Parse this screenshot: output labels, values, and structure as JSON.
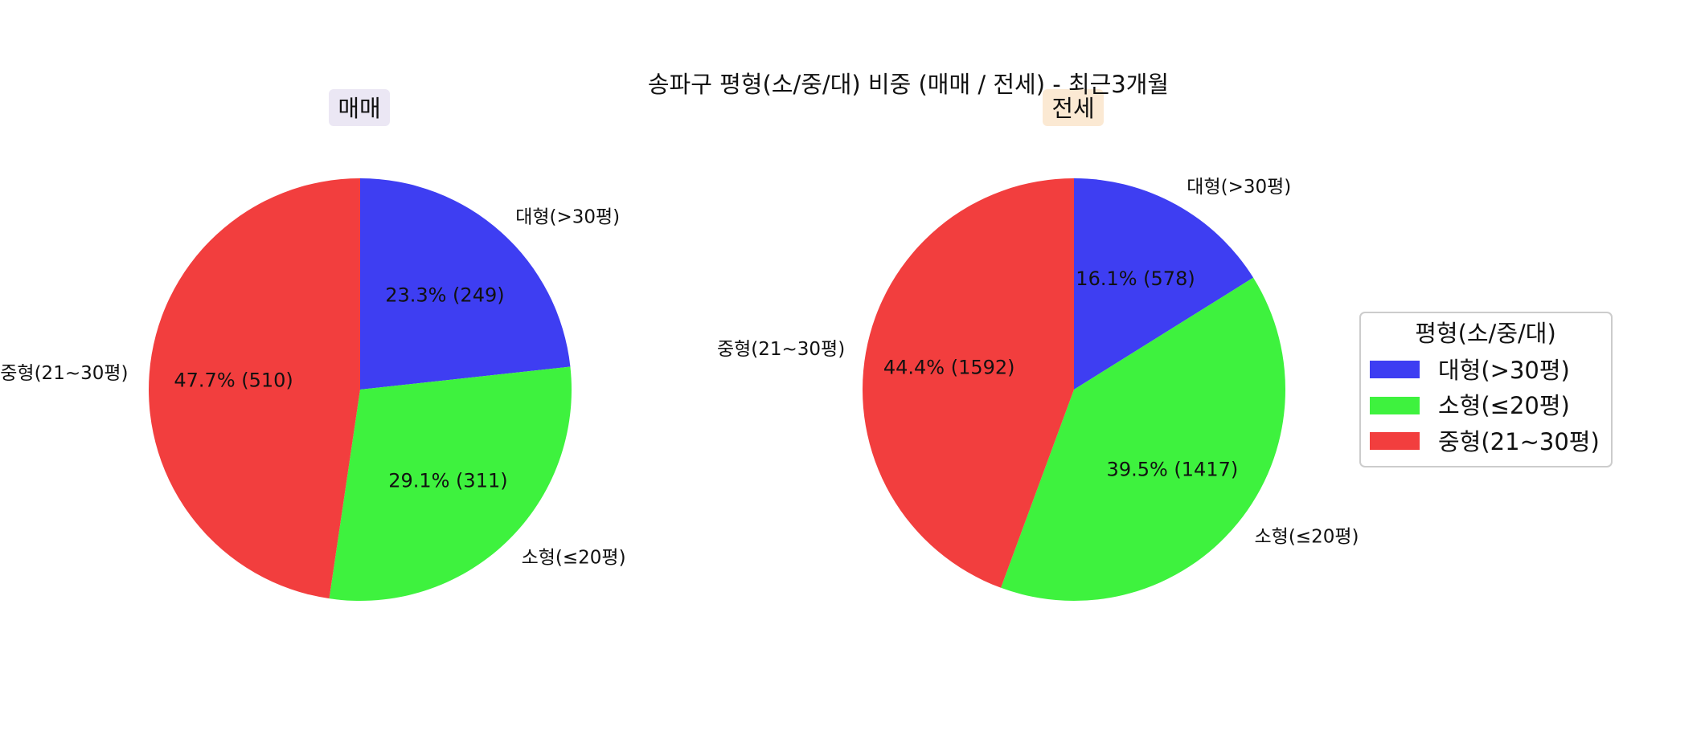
{
  "chart_data": {
    "type": "pie",
    "title": "송파구 평형(소/중/대) 비중 (매매 / 전세) - 최근3개월",
    "colors": {
      "대형(>30평)": "#3e3ef2",
      "소형(≤20평)": "#3ef23e",
      "중형(21~30평)": "#f23e3e"
    },
    "pies": [
      {
        "title": "매매",
        "title_bg": "#ebe7f4",
        "slices": [
          {
            "label": "대형(>30평)",
            "value": 249,
            "percent": "23.3%",
            "autopct": "23.3% (249)"
          },
          {
            "label": "소형(≤20평)",
            "value": 311,
            "percent": "29.1%",
            "autopct": "29.1% (311)"
          },
          {
            "label": "중형(21~30평)",
            "value": 510,
            "percent": "47.7%",
            "autopct": "47.7% (510)"
          }
        ]
      },
      {
        "title": "전세",
        "title_bg": "#fbe9d3",
        "slices": [
          {
            "label": "대형(>30평)",
            "value": 578,
            "percent": "16.1%",
            "autopct": "16.1% (578)"
          },
          {
            "label": "소형(≤20평)",
            "value": 1417,
            "percent": "39.5%",
            "autopct": "39.5% (1417)"
          },
          {
            "label": "중형(21~30평)",
            "value": 1592,
            "percent": "44.4%",
            "autopct": "44.4% (1592)"
          }
        ]
      }
    ],
    "legend": {
      "title": "평형(소/중/대)",
      "entries": [
        "대형(>30평)",
        "소형(≤20평)",
        "중형(21~30평)"
      ],
      "placement": "right"
    }
  }
}
